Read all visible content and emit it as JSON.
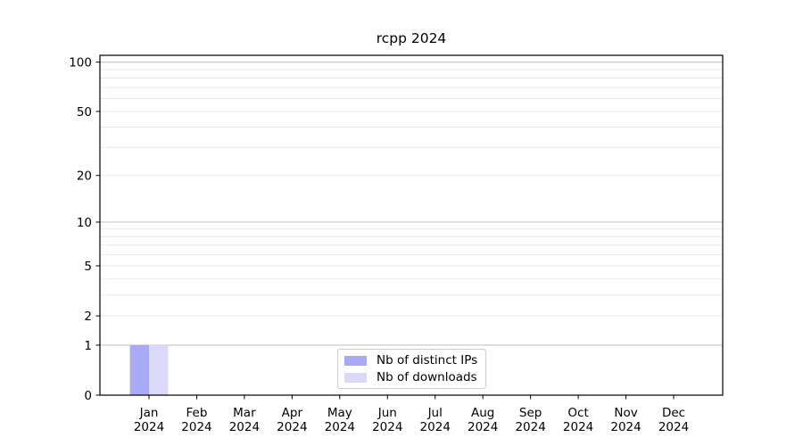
{
  "chart_data": {
    "type": "bar",
    "title": "rcpp 2024",
    "xlabel": "",
    "ylabel": "",
    "year_label": "2024",
    "categories": [
      "Jan",
      "Feb",
      "Mar",
      "Apr",
      "May",
      "Jun",
      "Jul",
      "Aug",
      "Sep",
      "Oct",
      "Nov",
      "Dec"
    ],
    "series": [
      {
        "name": "Nb of distinct IPs",
        "color": "#a9a9f5",
        "values": [
          1,
          0,
          0,
          0,
          0,
          0,
          0,
          0,
          0,
          0,
          0,
          0
        ]
      },
      {
        "name": "Nb of downloads",
        "color": "#dadaf8",
        "values": [
          1,
          0,
          0,
          0,
          0,
          0,
          0,
          0,
          0,
          0,
          0,
          0
        ]
      }
    ],
    "y_axis": {
      "scale": "log10(value+1)",
      "ylim": [
        0,
        110
      ],
      "tick_labels": [
        0,
        1,
        2,
        5,
        10,
        20,
        50,
        100
      ],
      "decade_gridlines": [
        1,
        10,
        100
      ],
      "minor_gridlines": [
        2,
        3,
        4,
        5,
        6,
        7,
        8,
        9,
        20,
        30,
        40,
        50,
        60,
        70,
        80,
        90
      ]
    },
    "legend": {
      "position": "bottom-center"
    },
    "colors": {
      "frame": "#000000",
      "tick": "#000000",
      "text": "#000000",
      "decade_grid": "#c3c3c3",
      "minor_grid": "#e7e7e7",
      "background": "#ffffff"
    }
  }
}
